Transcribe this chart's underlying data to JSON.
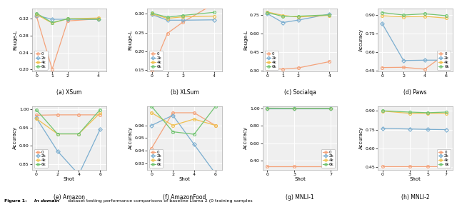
{
  "plots": [
    {
      "title": "(a) XSum",
      "ylabel": "Rouge-L",
      "xlabel": "",
      "xticks": [
        0,
        1,
        2,
        4
      ],
      "xlim": [
        -0.3,
        4.5
      ],
      "ylim": [
        0.195,
        0.345
      ],
      "yticks": [
        0.2,
        0.24,
        0.28,
        0.32
      ],
      "legend_loc": "lower left",
      "series": {
        "0": {
          "x": [
            0,
            1,
            2,
            4
          ],
          "y": [
            0.325,
            0.201,
            0.315,
            0.32
          ]
        },
        "2k": {
          "x": [
            0,
            1,
            2,
            4
          ],
          "y": [
            0.328,
            0.319,
            0.319,
            0.319
          ]
        },
        "4k": {
          "x": [
            0,
            1,
            2,
            4
          ],
          "y": [
            0.33,
            0.31,
            0.32,
            0.322
          ]
        },
        "6k": {
          "x": [
            0,
            1,
            2,
            4
          ],
          "y": [
            0.333,
            0.311,
            0.32,
            0.319
          ]
        }
      }
    },
    {
      "title": "(b) XLSum",
      "ylabel": "Rouge-L",
      "xlabel": "",
      "xticks": [
        0,
        1,
        2,
        4
      ],
      "xlim": [
        -0.3,
        4.5
      ],
      "ylim": [
        0.145,
        0.315
      ],
      "yticks": [
        0.15,
        0.2,
        0.25,
        0.3
      ],
      "legend_loc": "lower left",
      "series": {
        "0": {
          "x": [
            0,
            1,
            2,
            4
          ],
          "y": [
            0.148,
            0.248,
            0.278,
            0.327
          ]
        },
        "2k": {
          "x": [
            0,
            1,
            2,
            4
          ],
          "y": [
            0.298,
            0.283,
            0.283,
            0.284
          ]
        },
        "4k": {
          "x": [
            0,
            1,
            2,
            4
          ],
          "y": [
            0.3,
            0.288,
            0.292,
            0.294
          ]
        },
        "6k": {
          "x": [
            0,
            1,
            2,
            4
          ],
          "y": [
            0.302,
            0.291,
            0.296,
            0.304
          ]
        }
      }
    },
    {
      "title": "(c) Socialqa",
      "ylabel": "Rouge-L",
      "xlabel": "",
      "xticks": [
        0,
        1,
        2,
        4
      ],
      "xlim": [
        -0.3,
        4.5
      ],
      "ylim": [
        0.295,
        0.805
      ],
      "yticks": [
        0.3,
        0.45,
        0.6,
        0.75
      ],
      "legend_loc": "lower left",
      "series": {
        "0": {
          "x": [
            0,
            1,
            2,
            4
          ],
          "y": [
            0.322,
            0.315,
            0.325,
            0.375
          ]
        },
        "2k": {
          "x": [
            0,
            1,
            2,
            4
          ],
          "y": [
            0.762,
            0.69,
            0.71,
            0.758
          ]
        },
        "4k": {
          "x": [
            0,
            1,
            2,
            4
          ],
          "y": [
            0.775,
            0.748,
            0.735,
            0.748
          ]
        },
        "6k": {
          "x": [
            0,
            1,
            2,
            4
          ],
          "y": [
            0.77,
            0.74,
            0.742,
            0.752
          ]
        }
      }
    },
    {
      "title": "(d) Paws",
      "ylabel": "Accuracy",
      "xlabel": "",
      "xticks": [
        0,
        2,
        4,
        6
      ],
      "xlim": [
        -0.4,
        6.6
      ],
      "ylim": [
        0.44,
        0.955
      ],
      "yticks": [
        0.45,
        0.6,
        0.75,
        0.9
      ],
      "legend_loc": "lower right",
      "series": {
        "0": {
          "x": [
            0,
            2,
            4,
            6
          ],
          "y": [
            0.473,
            0.475,
            0.46,
            0.585
          ]
        },
        "2k": {
          "x": [
            0,
            2,
            4,
            6
          ],
          "y": [
            0.83,
            0.53,
            0.533,
            0.533
          ]
        },
        "4k": {
          "x": [
            0,
            2,
            4,
            6
          ],
          "y": [
            0.895,
            0.885,
            0.89,
            0.875
          ]
        },
        "6k": {
          "x": [
            0,
            2,
            4,
            6
          ],
          "y": [
            0.92,
            0.9,
            0.91,
            0.895
          ]
        }
      }
    },
    {
      "title": "(e) Amazon",
      "ylabel": "Accuracy",
      "xlabel": "Shot",
      "xticks": [
        0,
        2,
        4,
        6
      ],
      "xlim": [
        -0.4,
        6.6
      ],
      "ylim": [
        0.835,
        1.008
      ],
      "yticks": [
        0.85,
        0.9,
        0.95,
        1.0
      ],
      "legend_loc": "lower left",
      "series": {
        "0": {
          "x": [
            0,
            2,
            4,
            6
          ],
          "y": [
            0.984,
            0.985,
            0.985,
            0.985
          ]
        },
        "2k": {
          "x": [
            0,
            2,
            4,
            6
          ],
          "y": [
            0.977,
            0.886,
            0.822,
            0.945
          ]
        },
        "4k": {
          "x": [
            0,
            2,
            4,
            6
          ],
          "y": [
            0.975,
            0.933,
            0.933,
            0.99
          ]
        },
        "6k": {
          "x": [
            0,
            2,
            4,
            6
          ],
          "y": [
            0.999,
            0.933,
            0.933,
            0.999
          ]
        }
      }
    },
    {
      "title": "(f) AmazonFood",
      "ylabel": "Accuracy",
      "xlabel": "Shot",
      "xticks": [
        0,
        2,
        4,
        6
      ],
      "xlim": [
        -0.4,
        6.6
      ],
      "ylim": [
        0.925,
        0.975
      ],
      "yticks": [
        0.93,
        0.94,
        0.95,
        0.96
      ],
      "legend_loc": "lower left",
      "series": {
        "0": {
          "x": [
            0,
            2,
            4,
            6
          ],
          "y": [
            0.942,
            0.97,
            0.97,
            0.96
          ]
        },
        "2k": {
          "x": [
            0,
            2,
            4,
            6
          ],
          "y": [
            0.96,
            0.968,
            0.945,
            0.922
          ]
        },
        "4k": {
          "x": [
            0,
            2,
            4,
            6
          ],
          "y": [
            0.97,
            0.96,
            0.965,
            0.96
          ]
        },
        "6k": {
          "x": [
            0,
            2,
            4,
            6
          ],
          "y": [
            0.975,
            0.955,
            0.953,
            0.975
          ]
        }
      }
    },
    {
      "title": "(g) MNLI-1",
      "ylabel": "Accuracy",
      "xlabel": "Shot",
      "xticks": [
        0,
        3,
        7
      ],
      "xlim": [
        -0.5,
        7.7
      ],
      "ylim": [
        0.3,
        1.02
      ],
      "yticks": [
        0.4,
        0.6,
        0.8,
        1.0
      ],
      "legend_loc": "lower right",
      "series": {
        "0": {
          "x": [
            0,
            3,
            7
          ],
          "y": [
            0.335,
            0.335,
            0.335
          ]
        },
        "2k": {
          "x": [
            0,
            3,
            7
          ],
          "y": [
            0.998,
            0.998,
            0.998
          ]
        },
        "4k": {
          "x": [
            0,
            3,
            7
          ],
          "y": [
            1.0,
            0.999,
            0.999
          ]
        },
        "6k": {
          "x": [
            0,
            3,
            7
          ],
          "y": [
            1.0,
            0.999,
            0.999
          ]
        }
      }
    },
    {
      "title": "(h) MNLI-2",
      "ylabel": "Accuracy",
      "xlabel": "Shot",
      "xticks": [
        0,
        3,
        5,
        7
      ],
      "xlim": [
        -0.5,
        7.7
      ],
      "ylim": [
        0.43,
        0.935
      ],
      "yticks": [
        0.45,
        0.6,
        0.75,
        0.9
      ],
      "legend_loc": "lower right",
      "series": {
        "0": {
          "x": [
            0,
            3,
            5,
            7
          ],
          "y": [
            0.46,
            0.46,
            0.46,
            0.46
          ]
        },
        "2k": {
          "x": [
            0,
            3,
            5,
            7
          ],
          "y": [
            0.76,
            0.755,
            0.752,
            0.75
          ]
        },
        "4k": {
          "x": [
            0,
            3,
            5,
            7
          ],
          "y": [
            0.898,
            0.88,
            0.88,
            0.88
          ]
        },
        "6k": {
          "x": [
            0,
            3,
            5,
            7
          ],
          "y": [
            0.9,
            0.89,
            0.885,
            0.89
          ]
        }
      }
    }
  ],
  "colors": {
    "0": "#f4a27a",
    "2k": "#7baed0",
    "4k": "#f0c050",
    "6k": "#72c472"
  },
  "legend_keys": [
    "0",
    "2k",
    "4k",
    "6k"
  ],
  "marker_styles": {
    "0": "o",
    "2k": "D",
    "4k": "o",
    "6k": "o"
  }
}
